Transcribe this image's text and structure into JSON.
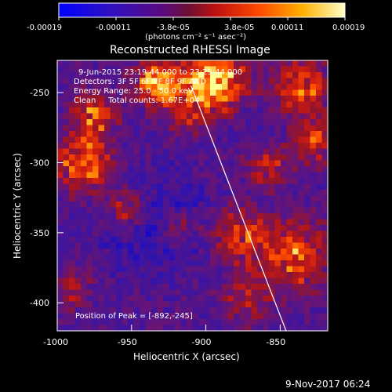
{
  "colorbar": {
    "tick_labels": [
      "-0.00019",
      "-0.00011",
      "-3.8e-05",
      "3.8e-05",
      "0.00011",
      "0.00019"
    ],
    "units": "(photons cm⁻² s⁻¹ asec⁻²)"
  },
  "image": {
    "title": "Reconstructed RHESSI Image",
    "info_lines": [
      "9-Jun-2015 23:19:44.000 to 23:29:44.000",
      "Detectors: 3F 5F 6F 7F 8F 9F AND",
      "Energy Range: 25.0 - 50.0 keV",
      "Clean     Total counts: 1.67E+04"
    ],
    "peak_label": "Position of Peak = [-892,-245]",
    "xlabel": "Heliocentric X (arcsec)",
    "ylabel": "Heliocentric Y (arcsec)",
    "x_ticks": [
      "-1000",
      "-950",
      "-900",
      "-850"
    ],
    "y_ticks": [
      "-250",
      "-300",
      "-350",
      "-400"
    ],
    "x_range": [
      -1000,
      -818
    ],
    "y_range": [
      -420,
      -227
    ],
    "limb_line": {
      "x": [
        -910,
        -846
      ],
      "y": [
        -245,
        -420
      ]
    }
  },
  "footer": {
    "timestamp": "9-Nov-2017 06:24"
  },
  "colors": {
    "low": "#0000ff",
    "mid": "#5a0a7a",
    "high": "#ffff80"
  }
}
